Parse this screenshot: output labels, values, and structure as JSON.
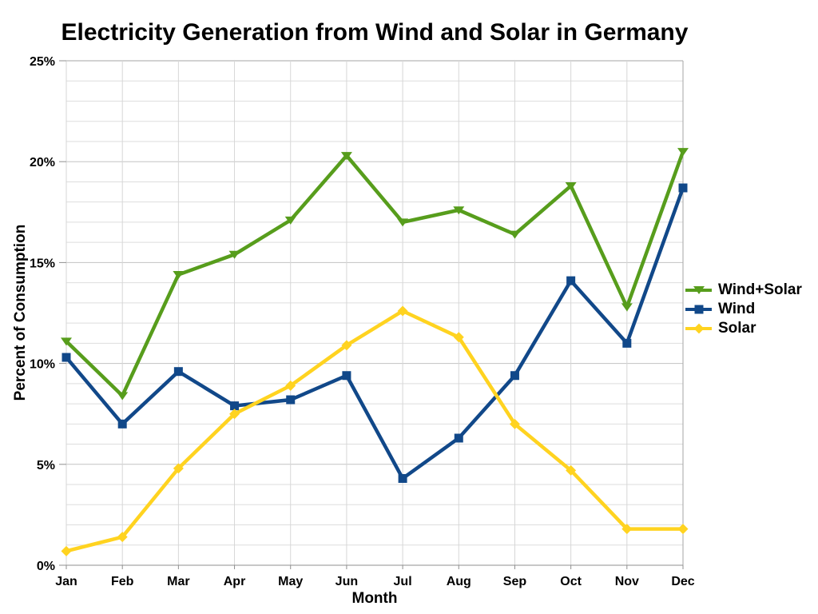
{
  "chart_data": {
    "type": "line",
    "title": "Electricity Generation from Wind and Solar in Germany",
    "xlabel": "Month",
    "ylabel": "Percent of Consumption",
    "categories": [
      "Jan",
      "Feb",
      "Mar",
      "Apr",
      "May",
      "Jun",
      "Jul",
      "Aug",
      "Sep",
      "Oct",
      "Nov",
      "Dec"
    ],
    "series": [
      {
        "name": "Wind+Solar",
        "color": "#579D1C",
        "marker": "triangle-down",
        "values": [
          11.1,
          8.4,
          14.4,
          15.4,
          17.1,
          20.3,
          17.0,
          17.6,
          16.4,
          18.8,
          12.8,
          20.5
        ]
      },
      {
        "name": "Wind",
        "color": "#114889",
        "marker": "square",
        "values": [
          10.3,
          7.0,
          9.6,
          7.9,
          8.2,
          9.4,
          4.3,
          6.3,
          9.4,
          14.1,
          11.0,
          18.7
        ]
      },
      {
        "name": "Solar",
        "color": "#FFD320",
        "marker": "diamond",
        "values": [
          0.7,
          1.4,
          4.8,
          7.5,
          8.9,
          10.9,
          12.6,
          11.3,
          7.0,
          4.7,
          1.8,
          1.8
        ]
      }
    ],
    "ylim": [
      0,
      25
    ],
    "y_tick_step": 5,
    "y_minor_step": 1,
    "y_tick_labels": [
      "0%",
      "5%",
      "10%",
      "15%",
      "20%",
      "25%"
    ],
    "grid": true,
    "legend_position": "right"
  }
}
